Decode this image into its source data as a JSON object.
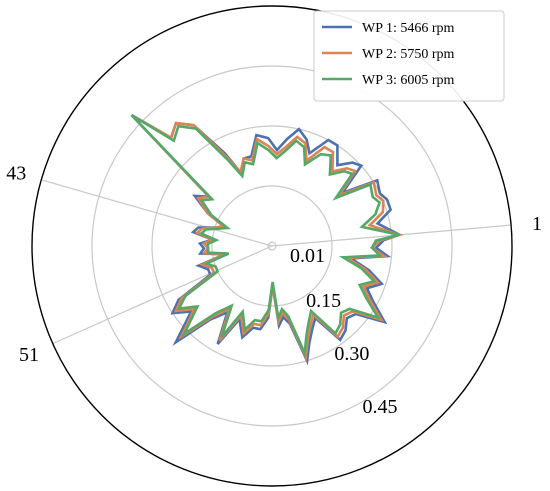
{
  "chart_data": {
    "type": "line",
    "subtype": "polar",
    "title": "",
    "radial_ticks": [
      "0.01",
      "0.15",
      "0.30",
      "0.45"
    ],
    "radial_values": [
      0.01,
      0.15,
      0.3,
      0.45
    ],
    "rlim": [
      0,
      0.6
    ],
    "angular_tick_labels": [
      {
        "label": "1",
        "angle_deg": 5
      },
      {
        "label": "43",
        "angle_deg": 164
      },
      {
        "label": "51",
        "angle_deg": 204
      }
    ],
    "grid": true,
    "legend_position": "top-right",
    "point_angles_deg": [
      5,
      12,
      17,
      22,
      26,
      32,
      37,
      42,
      46,
      51,
      57,
      62,
      68,
      72,
      77,
      82,
      87,
      92,
      98,
      103,
      108,
      113,
      117,
      123,
      128,
      133,
      137,
      142,
      147,
      153,
      158,
      162,
      166,
      170,
      174,
      178,
      182,
      186,
      190,
      195,
      200,
      205,
      210,
      214,
      219,
      225,
      230,
      236,
      241,
      246,
      252,
      257,
      262,
      267,
      271,
      275,
      279,
      283,
      287,
      291,
      296,
      301,
      306,
      311,
      316,
      321,
      326,
      331,
      336,
      341,
      346,
      351,
      355,
      359,
      3
    ],
    "series": [
      {
        "name": "WP 1: 5466 rpm",
        "color": "#4c72b0",
        "values": [
          0.32,
          0.27,
          0.31,
          0.31,
          0.3,
          0.31,
          0.22,
          0.3,
          0.29,
          0.26,
          0.3,
          0.3,
          0.25,
          0.28,
          0.3,
          0.27,
          0.24,
          0.27,
          0.28,
          0.23,
          0.23,
          0.2,
          0.26,
          0.36,
          0.39,
          0.37,
          0.48,
          0.2,
          0.23,
          0.18,
          0.13,
          0.15,
          0.19,
          0.2,
          0.15,
          0.18,
          0.17,
          0.18,
          0.12,
          0.19,
          0.17,
          0.17,
          0.27,
          0.3,
          0.26,
          0.34,
          0.24,
          0.2,
          0.28,
          0.2,
          0.24,
          0.21,
          0.21,
          0.18,
          0.1,
          0.2,
          0.18,
          0.2,
          0.3,
          0.26,
          0.23,
          0.21,
          0.29,
          0.28,
          0.26,
          0.27,
          0.34,
          0.29,
          0.26,
          0.29,
          0.25,
          0.2,
          0.29,
          0.26,
          0.28
        ]
      },
      {
        "name": "WP 2: 5750 rpm",
        "color": "#dd8452",
        "values": [
          0.32,
          0.25,
          0.29,
          0.3,
          0.29,
          0.3,
          0.21,
          0.28,
          0.27,
          0.24,
          0.28,
          0.28,
          0.23,
          0.27,
          0.28,
          0.25,
          0.23,
          0.25,
          0.27,
          0.22,
          0.23,
          0.2,
          0.25,
          0.36,
          0.39,
          0.37,
          0.48,
          0.2,
          0.22,
          0.18,
          0.13,
          0.15,
          0.18,
          0.19,
          0.15,
          0.17,
          0.16,
          0.17,
          0.12,
          0.18,
          0.16,
          0.16,
          0.26,
          0.29,
          0.25,
          0.32,
          0.23,
          0.19,
          0.27,
          0.19,
          0.23,
          0.2,
          0.2,
          0.17,
          0.1,
          0.19,
          0.17,
          0.19,
          0.29,
          0.25,
          0.22,
          0.2,
          0.28,
          0.27,
          0.25,
          0.26,
          0.33,
          0.28,
          0.25,
          0.28,
          0.24,
          0.19,
          0.28,
          0.25,
          0.27
        ]
      },
      {
        "name": "WP 3: 6005 rpm",
        "color": "#55a868",
        "values": [
          0.32,
          0.23,
          0.27,
          0.29,
          0.28,
          0.29,
          0.2,
          0.27,
          0.26,
          0.23,
          0.27,
          0.26,
          0.22,
          0.26,
          0.27,
          0.24,
          0.22,
          0.24,
          0.26,
          0.21,
          0.22,
          0.19,
          0.24,
          0.35,
          0.38,
          0.36,
          0.48,
          0.19,
          0.21,
          0.17,
          0.12,
          0.14,
          0.17,
          0.18,
          0.14,
          0.16,
          0.16,
          0.16,
          0.11,
          0.17,
          0.15,
          0.15,
          0.25,
          0.28,
          0.24,
          0.31,
          0.22,
          0.18,
          0.26,
          0.18,
          0.22,
          0.19,
          0.19,
          0.16,
          0.09,
          0.18,
          0.16,
          0.18,
          0.28,
          0.24,
          0.21,
          0.19,
          0.27,
          0.26,
          0.24,
          0.25,
          0.32,
          0.27,
          0.24,
          0.27,
          0.23,
          0.18,
          0.27,
          0.25,
          0.26
        ]
      }
    ]
  }
}
